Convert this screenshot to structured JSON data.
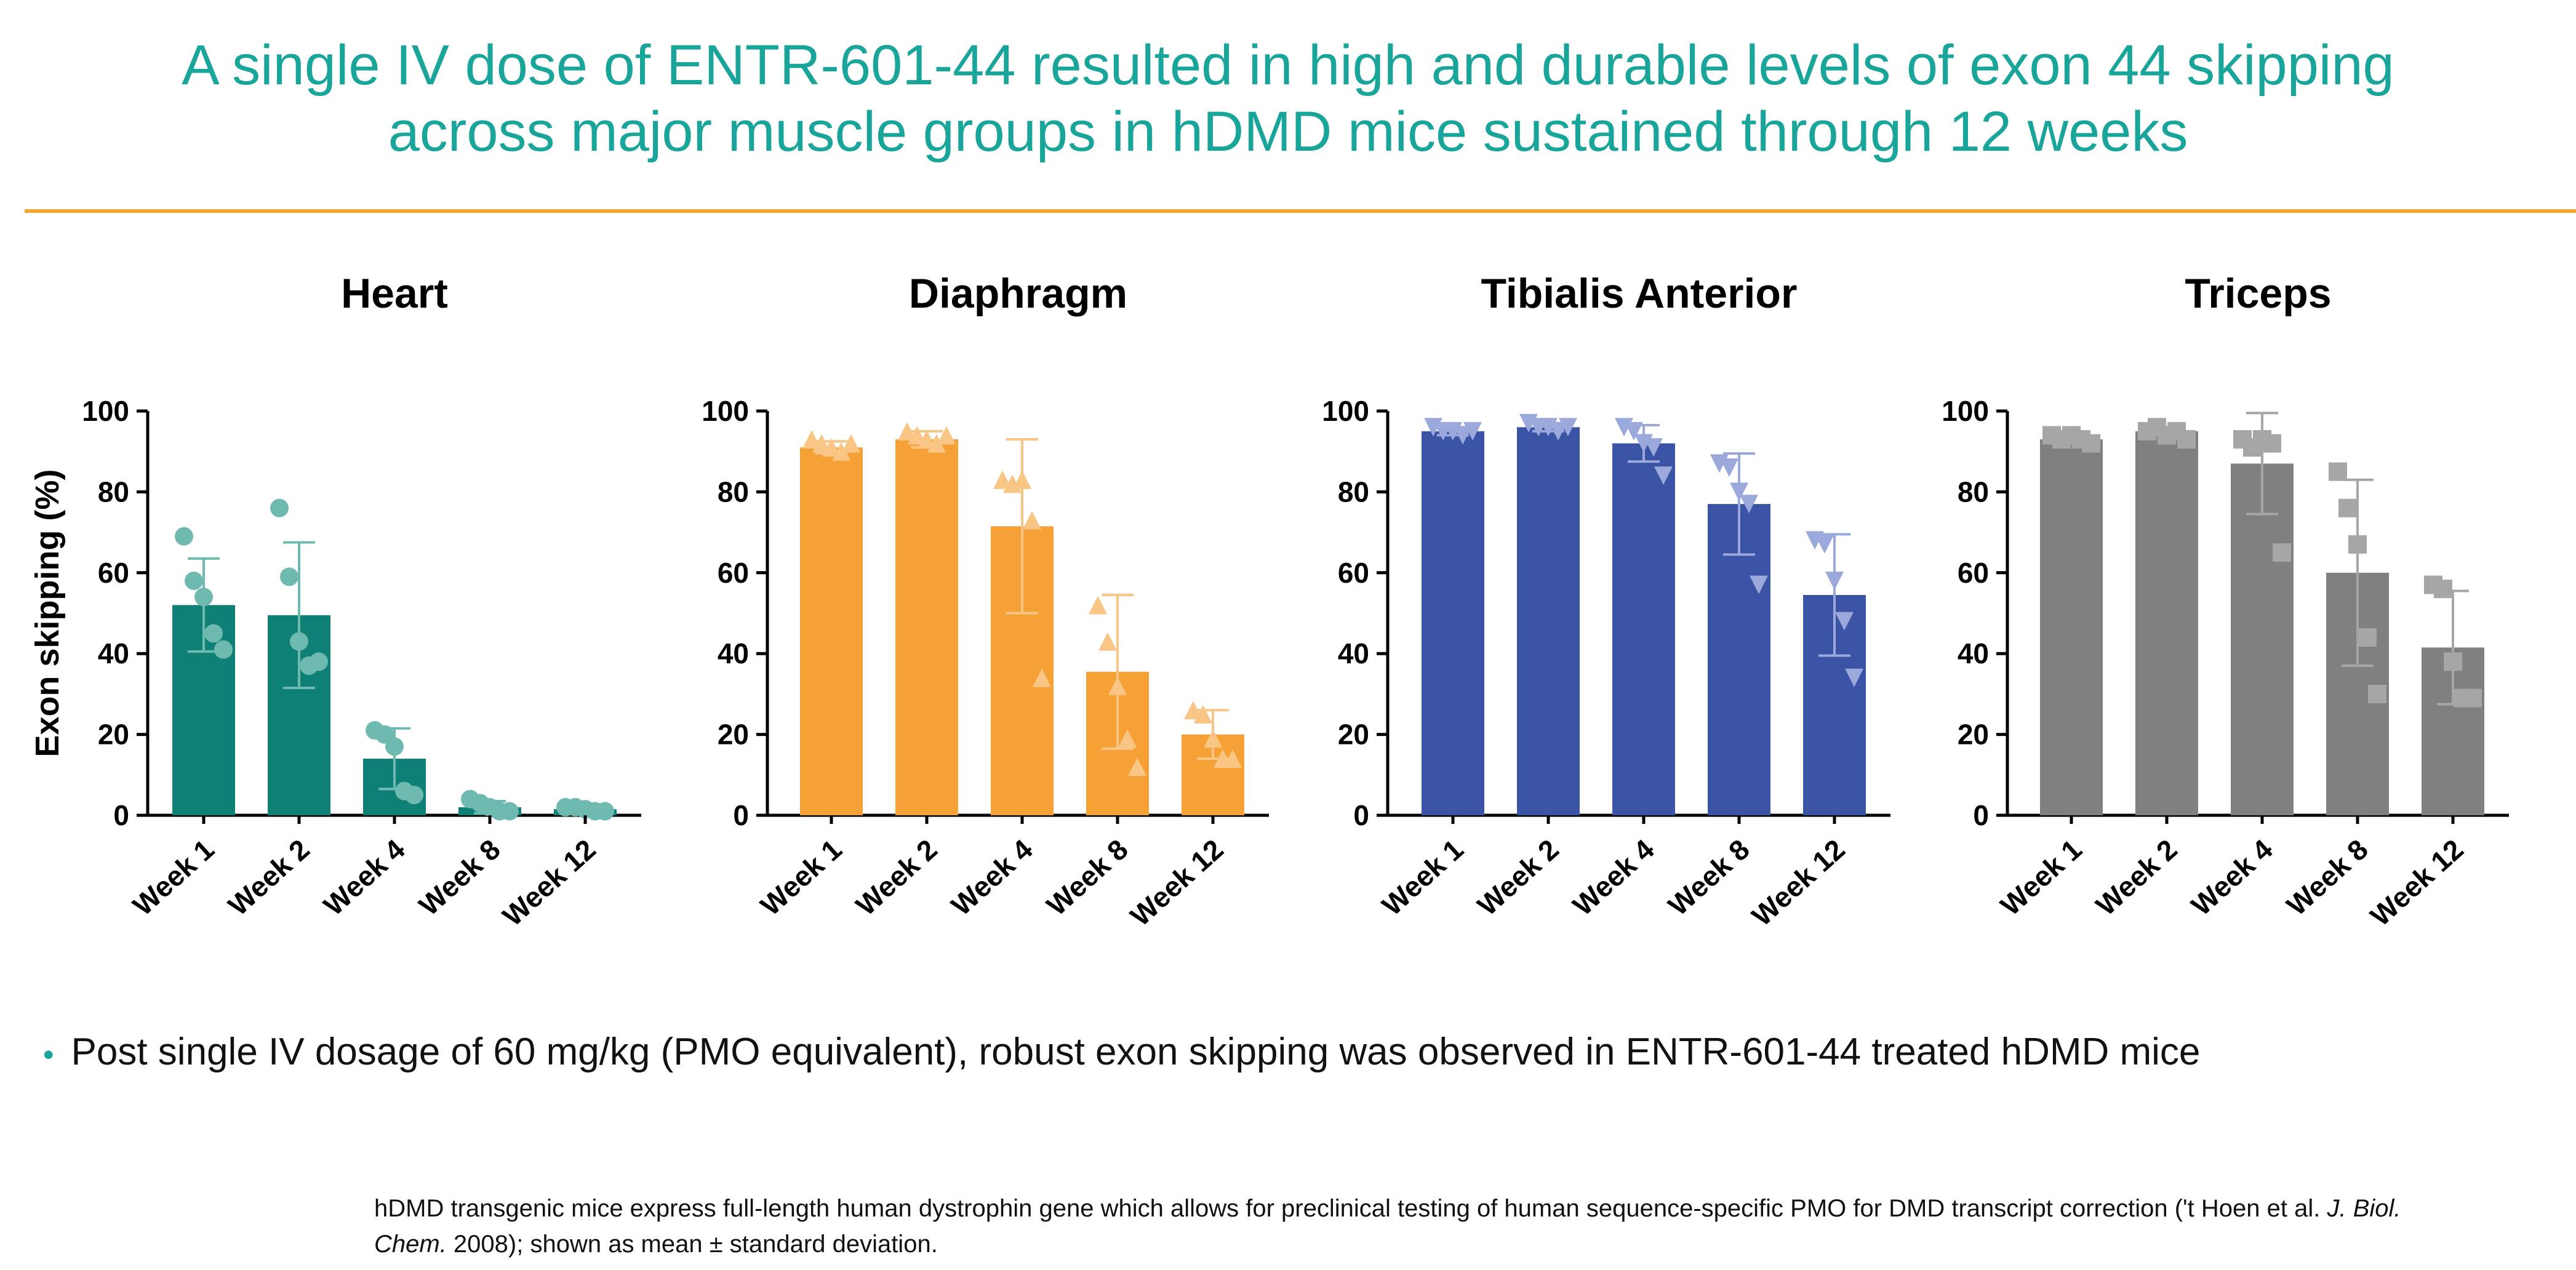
{
  "title": {
    "line1": "A single IV dose of ENTR-601-44 resulted in high and durable levels of exon 44 skipping",
    "line2": "across major muscle groups in hDMD mice sustained through 12 weeks"
  },
  "colors": {
    "title": "#1aa59a",
    "rule": "#f2a535"
  },
  "chart_data": [
    {
      "type": "bar",
      "title": "Heart",
      "ylabel": "Exon skipping (%)",
      "xlabel": "",
      "ylim": [
        0,
        100
      ],
      "yticks": [
        "0",
        "20",
        "40",
        "60",
        "80",
        "100"
      ],
      "categories": [
        "Week 1",
        "Week 2",
        "Week 4",
        "Week 8",
        "Week 12"
      ],
      "values": [
        52,
        49.5,
        14,
        2,
        1.5
      ],
      "error": [
        11.5,
        18,
        7.5,
        1.5,
        0.6
      ],
      "points": [
        [
          69,
          58,
          54,
          45,
          41
        ],
        [
          76,
          59,
          43,
          37,
          38
        ],
        [
          21,
          20,
          17,
          6,
          5
        ],
        [
          4,
          3,
          2,
          1,
          1
        ],
        [
          2,
          2,
          1.5,
          1,
          1
        ]
      ],
      "bar_color": "#0e8075",
      "point_color": "#6fbab0",
      "marker": "circle"
    },
    {
      "type": "bar",
      "title": "Diaphragm",
      "ylabel": "",
      "xlabel": "",
      "ylim": [
        0,
        100
      ],
      "yticks": [
        "0",
        "20",
        "40",
        "60",
        "80",
        "100"
      ],
      "categories": [
        "Week 1",
        "Week 2",
        "Week 4",
        "Week 8",
        "Week 12"
      ],
      "values": [
        91,
        93,
        71.5,
        35.5,
        20
      ],
      "error": [
        1.5,
        2,
        21.5,
        19,
        6
      ],
      "points": [
        [
          93,
          92,
          91,
          90,
          92
        ],
        [
          95,
          94,
          93,
          92,
          94
        ],
        [
          83,
          82,
          83,
          73,
          34
        ],
        [
          52,
          43,
          32,
          19,
          12
        ],
        [
          26,
          25,
          19,
          14,
          14
        ]
      ],
      "bar_color": "#f6a136",
      "point_color": "#f9c585",
      "marker": "triangle-up"
    },
    {
      "type": "bar",
      "title": "Tibialis Anterior",
      "ylabel": "",
      "xlabel": "",
      "ylim": [
        0,
        100
      ],
      "yticks": [
        "0",
        "20",
        "40",
        "60",
        "80",
        "100"
      ],
      "categories": [
        "Week 1",
        "Week 2",
        "Week 4",
        "Week 8",
        "Week 12"
      ],
      "values": [
        95,
        96,
        92,
        77,
        54.5
      ],
      "error": [
        1,
        1,
        4.5,
        12.5,
        15
      ],
      "points": [
        [
          96,
          95,
          95,
          94,
          95
        ],
        [
          97,
          96,
          96,
          95,
          96
        ],
        [
          96,
          95,
          92,
          91,
          84
        ],
        [
          87,
          86,
          80,
          77,
          57
        ],
        [
          68,
          67,
          58,
          48,
          34
        ]
      ],
      "bar_color": "#3a53a4",
      "point_color": "#9aa8dc",
      "marker": "triangle-down"
    },
    {
      "type": "bar",
      "title": "Triceps",
      "ylabel": "",
      "xlabel": "",
      "ylim": [
        0,
        100
      ],
      "yticks": [
        "0",
        "20",
        "40",
        "60",
        "80",
        "100"
      ],
      "categories": [
        "Week 1",
        "Week 2",
        "Week 4",
        "Week 8",
        "Week 12"
      ],
      "values": [
        93,
        95,
        87,
        60,
        41.5
      ],
      "error": [
        1,
        1,
        12.5,
        23,
        14
      ],
      "points": [
        [
          94,
          93,
          94,
          93,
          92
        ],
        [
          95,
          96,
          94,
          95,
          93
        ],
        [
          93,
          91,
          93,
          92,
          65
        ],
        [
          85,
          76,
          67,
          44,
          30
        ],
        [
          57,
          56,
          38,
          29,
          29
        ]
      ],
      "bar_color": "#808080",
      "point_color": "#a6a6a6",
      "marker": "square"
    }
  ],
  "bullet": {
    "text": "Post single IV dosage of 60 mg/kg (PMO equivalent), robust exon skipping was observed in ENTR-601-44 treated hDMD mice"
  },
  "footnote": {
    "part1": "hDMD transgenic mice express full-length human dystrophin gene which allows for preclinical testing of human sequence-specific PMO for DMD transcript correction ('t Hoen et al. ",
    "journal": "J. Biol. Chem.",
    "part2": " 2008); shown as mean ± standard deviation."
  }
}
